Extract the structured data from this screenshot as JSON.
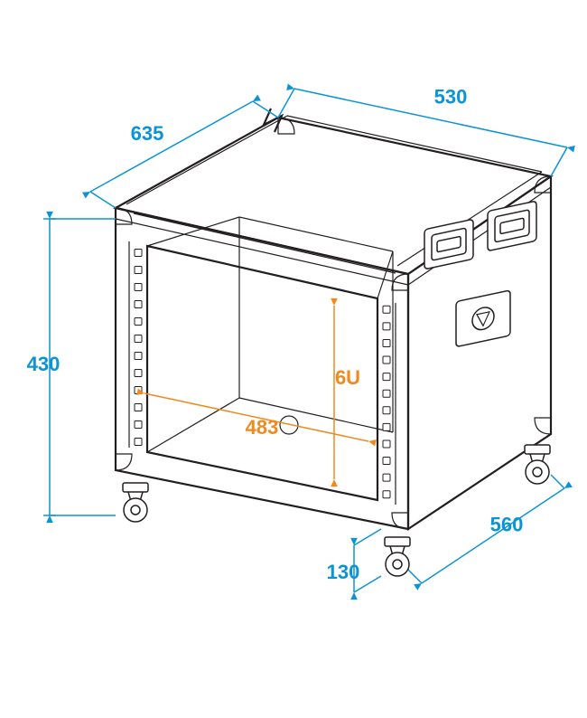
{
  "dimensions": {
    "depth_top": "635",
    "width_top": "530",
    "height_left": "430",
    "depth_bottom": "560",
    "caster_height": "130",
    "inner_width": "483",
    "rack_units": "6U"
  },
  "colors": {
    "dimension": "#0a94d6",
    "inner": "#f08a1f",
    "outline": "#231f20",
    "background": "#ffffff"
  },
  "stroke_widths": {
    "main_outline": 2.2,
    "thin_outline": 1.2,
    "dimension": 1.5
  }
}
